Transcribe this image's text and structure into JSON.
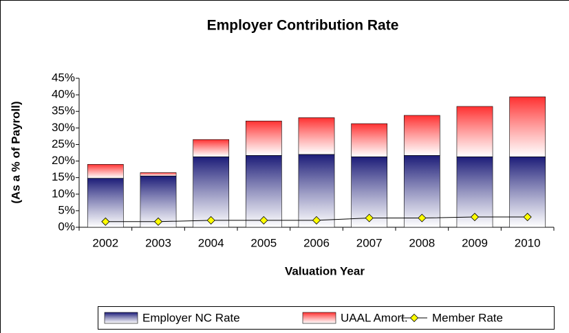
{
  "chart_data": {
    "type": "bar",
    "stacked": true,
    "title": "Employer Contribution Rate",
    "x_label": "Valuation Year",
    "y_label": "(As a % of Payroll)",
    "categories": [
      "2002",
      "2003",
      "2004",
      "2005",
      "2006",
      "2007",
      "2008",
      "2009",
      "2010"
    ],
    "series": [
      {
        "name": "Employer NC Rate",
        "type": "bar",
        "color": "#1c1c78",
        "values": [
          14.8,
          15.5,
          21.3,
          21.7,
          22.0,
          21.3,
          21.7,
          21.3,
          21.3
        ]
      },
      {
        "name": "UAAL Amort.",
        "type": "bar",
        "color": "#ff3030",
        "values": [
          4.2,
          1.0,
          5.2,
          10.4,
          11.1,
          10.0,
          12.1,
          15.2,
          18.1
        ]
      },
      {
        "name": "Member Rate",
        "type": "line",
        "color": "#ffff00",
        "values": [
          1.7,
          1.7,
          2.1,
          2.1,
          2.1,
          2.8,
          2.8,
          3.1,
          3.1
        ]
      }
    ],
    "ylim": [
      0,
      45
    ],
    "yticks": [
      {
        "value": 0,
        "label": "0%"
      },
      {
        "value": 5,
        "label": "5%"
      },
      {
        "value": 10,
        "label": "10%"
      },
      {
        "value": 15,
        "label": "15%"
      },
      {
        "value": 20,
        "label": "20%"
      },
      {
        "value": 25,
        "label": "25%"
      },
      {
        "value": 30,
        "label": "30%"
      },
      {
        "value": 35,
        "label": "35%"
      },
      {
        "value": 40,
        "label": "40%"
      },
      {
        "value": 45,
        "label": "45%"
      }
    ],
    "legend": "bottom"
  }
}
